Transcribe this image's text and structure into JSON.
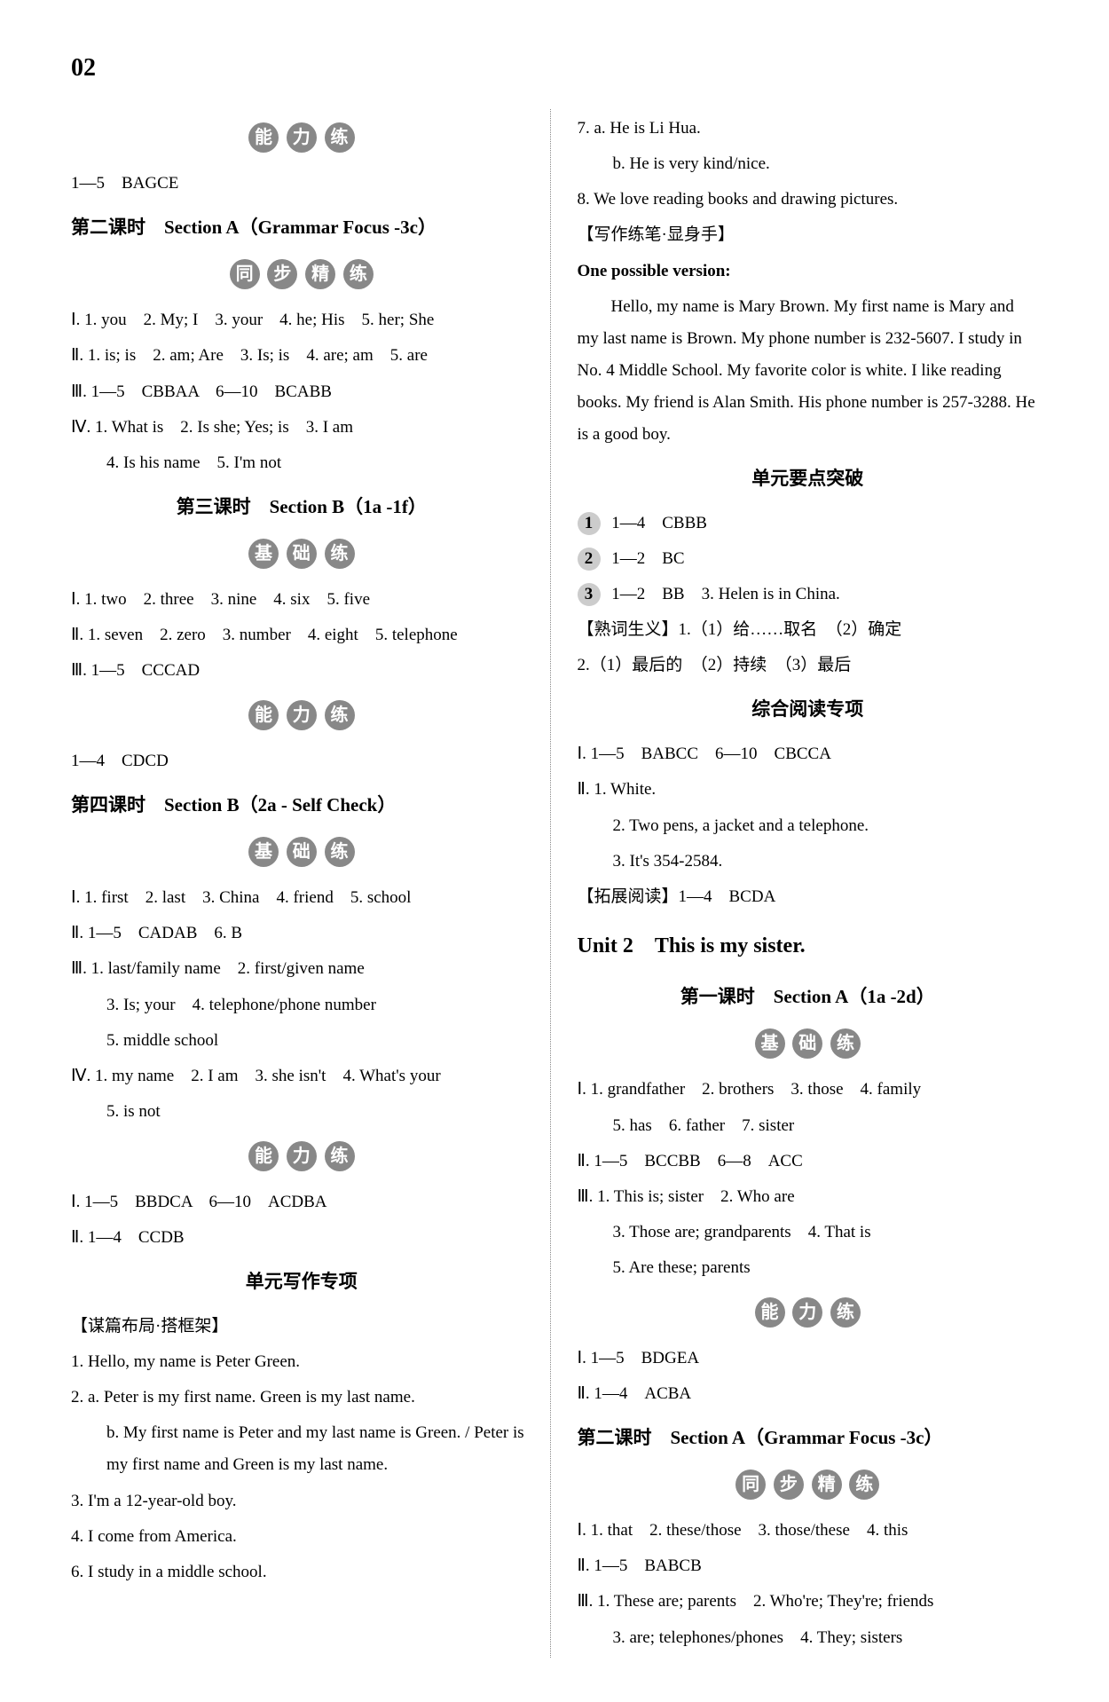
{
  "pageNumber": "02",
  "pills": {
    "ability": [
      "能",
      "力",
      "练"
    ],
    "sync": [
      "同",
      "步",
      "精",
      "练"
    ],
    "basic": [
      "基",
      "础",
      "练"
    ]
  },
  "left": {
    "line1": "1—5　BAGCE",
    "h2": "第二课时　Section A（Grammar Focus -3c）",
    "sync1_I": "Ⅰ. 1. you　2. My; I　3. your　4. he; His　5. her; She",
    "sync1_II": "Ⅱ. 1. is; is　2. am; Are　3. Is; is　4. are; am　5. are",
    "sync1_III": "Ⅲ. 1—5　CBBAA　6—10　BCABB",
    "sync1_IV": "Ⅳ. 1. What is　2. Is she; Yes; is　3. I am",
    "sync1_IV_2": "4. Is his name　5. I'm not",
    "h3": "第三课时　Section B（1a -1f）",
    "basic1_I": "Ⅰ. 1. two　2. three　3. nine　4. six　5. five",
    "basic1_II": "Ⅱ. 1. seven　2. zero　3. number　4. eight　5. telephone",
    "basic1_III": "Ⅲ. 1—5　CCCAD",
    "ability2": "1—4　CDCD",
    "h4": "第四课时　Section B（2a - Self Check）",
    "basic2_I": "Ⅰ. 1. first　2. last　3. China　4. friend　5. school",
    "basic2_II": "Ⅱ. 1—5　CADAB　6. B",
    "basic2_III": "Ⅲ. 1. last/family name　2. first/given name",
    "basic2_III_2": "3. Is; your　4. telephone/phone number",
    "basic2_III_3": "5. middle school",
    "basic2_IV": "Ⅳ. 1. my name　2. I am　3. she isn't　4. What's your",
    "basic2_IV_2": "5. is not",
    "ability3_I": "Ⅰ. 1—5　BBDCA　6—10　ACDBA",
    "ability3_II": "Ⅱ. 1—4　CCDB",
    "writingTitle": "单元写作专项",
    "frameLabel": "【谋篇布局·搭框架】",
    "w1": "1. Hello, my name is Peter Green.",
    "w2a": "2. a. Peter is my first name. Green is my last name.",
    "w2b": "b. My first name is Peter and my last name is Green. / Peter is my first name and Green is my last name.",
    "w3": "3. I'm a 12-year-old boy.",
    "w4": "4. I come from America.",
    "w6": "6. I study in a middle school."
  },
  "right": {
    "r7a": "7. a. He is Li Hua.",
    "r7b": "b. He is very kind/nice.",
    "r8": "8. We love reading books and drawing pictures.",
    "writePracLabel": "【写作练笔·显身手】",
    "onePossible": "One possible version:",
    "essay": "Hello, my name is Mary Brown. My first name is Mary and my last name is Brown. My phone number is 232-5607. I study in No. 4 Middle School. My favorite color is white. I like reading books. My friend is Alan Smith. His phone number is 257-3288. He is a good boy.",
    "unitBreak": "单元要点突破",
    "c1": "1—4　CBBB",
    "c2": "1—2　BC",
    "c3": "1—2　BB　3. Helen is in China.",
    "vocab1": "【熟词生义】1.（1）给……取名　（2）确定",
    "vocab2": "2.（1）最后的　（2）持续　（3）最后",
    "readingTitle": "综合阅读专项",
    "read_I": "Ⅰ. 1—5　BABCC　6—10　CBCCA",
    "read_II": "Ⅱ. 1. White.",
    "read_II_2": "2. Two pens, a jacket and a telephone.",
    "read_II_3": "3. It's 354-2584.",
    "extRead": "【拓展阅读】1—4　BCDA",
    "unit2": "Unit 2　This is my sister.",
    "u2_lesson1": "第一课时　Section A（1a -2d）",
    "u2b_I": "Ⅰ. 1. grandfather　2. brothers　3. those　4. family",
    "u2b_I_2": "5. has　6. father　7. sister",
    "u2b_II": "Ⅱ. 1—5　BCCBB　6—8　ACC",
    "u2b_III": "Ⅲ. 1. This is; sister　2. Who are",
    "u2b_III_2": "3. Those are; grandparents　4. That is",
    "u2b_III_3": "5. Are these; parents",
    "u2a_I": "Ⅰ. 1—5　BDGEA",
    "u2a_II": "Ⅱ. 1—4　ACBA",
    "u2_lesson2": "第二课时　Section A（Grammar Focus -3c）",
    "u2s_I": "Ⅰ. 1. that　2. these/those　3. those/these　4. this",
    "u2s_II": "Ⅱ. 1—5　BABCB",
    "u2s_III": "Ⅲ. 1. These are; parents　2. Who're; They're; friends",
    "u2s_III_2": "3. are; telephones/phones　4. They; sisters"
  }
}
